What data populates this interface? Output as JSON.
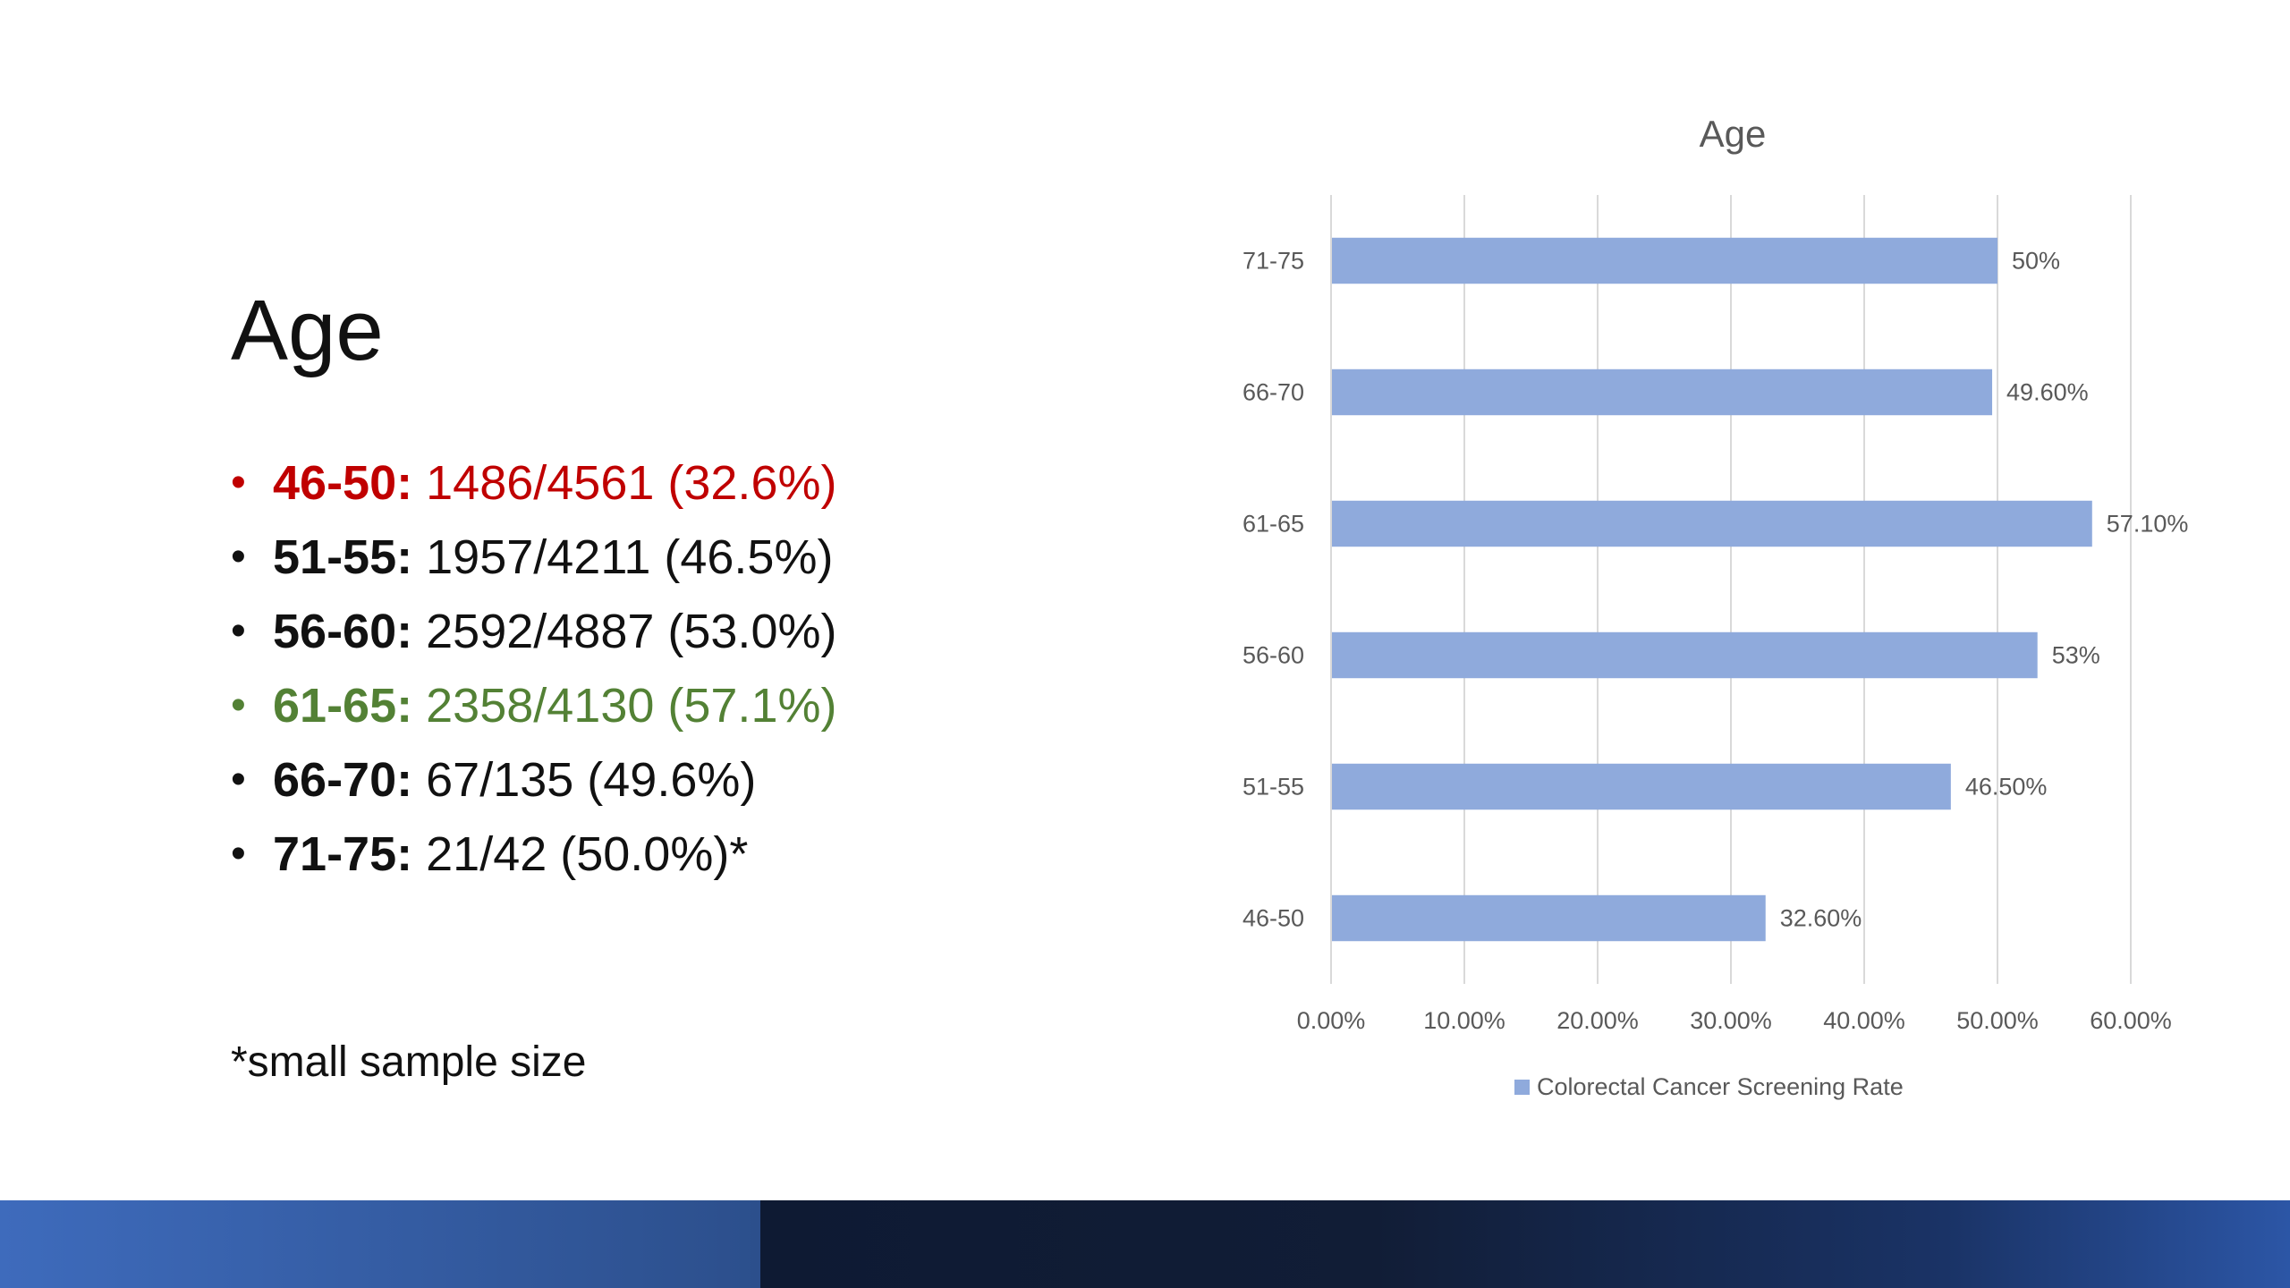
{
  "slide": {
    "title": "Age",
    "bullets": [
      {
        "range": "46-50",
        "text": "1486/4561 (32.6%)",
        "color": "#c00000"
      },
      {
        "range": "51-55",
        "text": "1957/4211 (46.5%)",
        "color": "#111111"
      },
      {
        "range": "56-60",
        "text": "2592/4887 (53.0%)",
        "color": "#111111"
      },
      {
        "range": "61-65",
        "text": "2358/4130 (57.1%)",
        "color": "#538135"
      },
      {
        "range": "66-70",
        "text": "67/135 (49.6%)",
        "color": "#111111"
      },
      {
        "range": "71-75",
        "text": "21/42 (50.0%)*",
        "color": "#111111"
      }
    ],
    "footnote": "*small sample size"
  },
  "chart_data": {
    "type": "bar",
    "orientation": "horizontal",
    "title": "Age",
    "categories": [
      "71-75",
      "66-70",
      "61-65",
      "56-60",
      "51-55",
      "46-50"
    ],
    "series": [
      {
        "name": "Colorectal Cancer Screening Rate",
        "values": [
          50,
          49.6,
          57.1,
          53,
          46.5,
          32.6
        ],
        "labels": [
          "50%",
          "49.60%",
          "57.10%",
          "53%",
          "46.50%",
          "32.60%"
        ],
        "color": "#8faadc"
      }
    ],
    "xticks": [
      "0.00%",
      "10.00%",
      "20.00%",
      "30.00%",
      "40.00%",
      "50.00%",
      "60.00%"
    ],
    "xlim": [
      0,
      60
    ],
    "grid": true,
    "legend": "bottom"
  },
  "colors": {
    "bar": "#8faadc",
    "grid": "#d9d9d9",
    "text": "#595959"
  }
}
